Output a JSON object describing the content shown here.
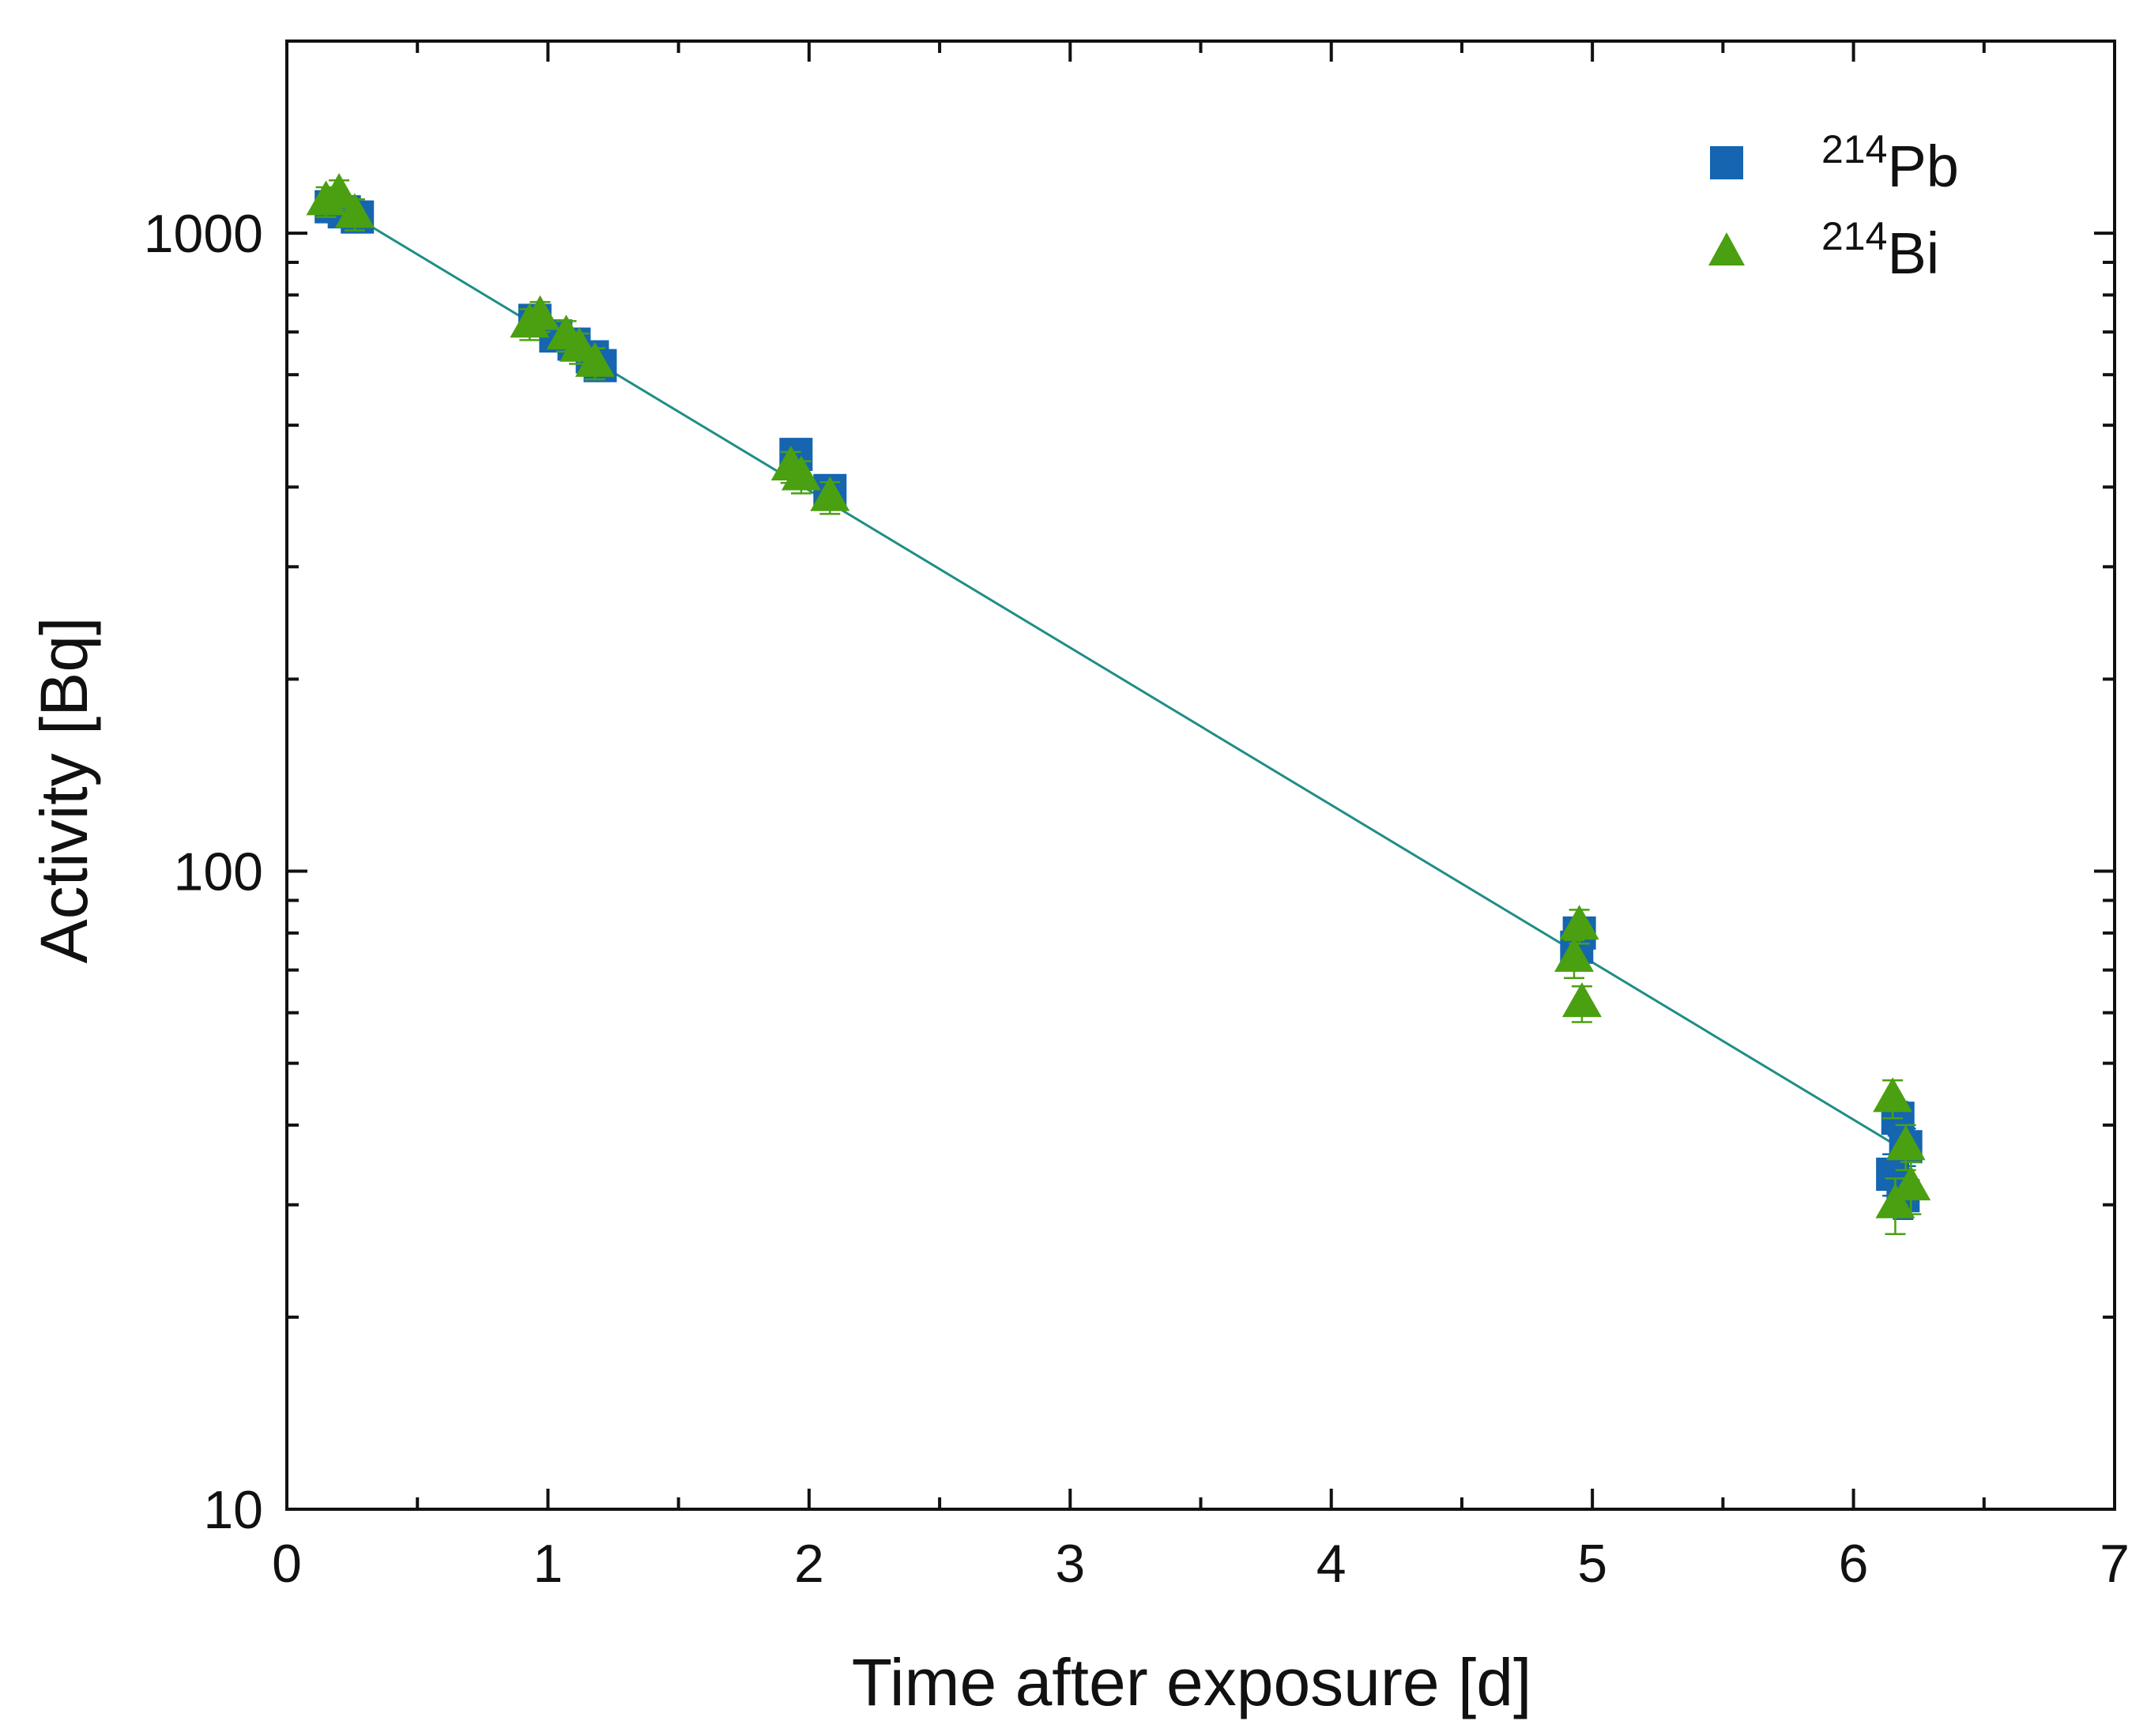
{
  "chart_data": {
    "type": "scatter",
    "xlabel": "Time after exposure [d]",
    "ylabel": "Activity [Bq]",
    "xlim": [
      0,
      7
    ],
    "ylim": [
      10,
      2000
    ],
    "yscale": "log",
    "x_ticks": [
      "0",
      "1",
      "2",
      "3",
      "4",
      "5",
      "6",
      "7"
    ],
    "y_ticks": [
      "10",
      "100",
      "1000"
    ],
    "legend_position": "top-right",
    "colors": {
      "pb": "#1565b0",
      "bi": "#4aa010",
      "fit": "#1e8e86",
      "axis": "#111111"
    },
    "series": [
      {
        "name": "Pb",
        "isotope_mass": "214",
        "marker": "square",
        "points": [
          {
            "x": 0.17,
            "y": 1100,
            "err": 50
          },
          {
            "x": 0.22,
            "y": 1080,
            "err": 50
          },
          {
            "x": 0.27,
            "y": 1060,
            "err": 50
          },
          {
            "x": 0.95,
            "y": 730,
            "err": 35
          },
          {
            "x": 1.03,
            "y": 690,
            "err": 33
          },
          {
            "x": 1.1,
            "y": 670,
            "err": 32
          },
          {
            "x": 1.17,
            "y": 640,
            "err": 30
          },
          {
            "x": 1.2,
            "y": 620,
            "err": 30
          },
          {
            "x": 1.95,
            "y": 450,
            "err": 22
          },
          {
            "x": 2.08,
            "y": 395,
            "err": 20
          },
          {
            "x": 4.95,
            "y": 80,
            "err": 4
          },
          {
            "x": 4.94,
            "y": 76,
            "err": 4
          },
          {
            "x": 6.17,
            "y": 41,
            "err": 2.5
          },
          {
            "x": 6.2,
            "y": 37,
            "err": 2.5
          },
          {
            "x": 6.15,
            "y": 33.5,
            "err": 2.5
          },
          {
            "x": 6.19,
            "y": 31,
            "err": 2.5
          }
        ]
      },
      {
        "name": "Bi",
        "isotope_mass": "214",
        "marker": "triangle",
        "points": [
          {
            "x": 0.15,
            "y": 1120,
            "err": 60
          },
          {
            "x": 0.2,
            "y": 1150,
            "err": 60
          },
          {
            "x": 0.26,
            "y": 1070,
            "err": 60
          },
          {
            "x": 0.93,
            "y": 720,
            "err": 40
          },
          {
            "x": 0.97,
            "y": 740,
            "err": 40
          },
          {
            "x": 1.07,
            "y": 690,
            "err": 38
          },
          {
            "x": 1.12,
            "y": 660,
            "err": 36
          },
          {
            "x": 1.18,
            "y": 625,
            "err": 35
          },
          {
            "x": 1.93,
            "y": 430,
            "err": 24
          },
          {
            "x": 1.97,
            "y": 415,
            "err": 24
          },
          {
            "x": 2.08,
            "y": 385,
            "err": 22
          },
          {
            "x": 4.95,
            "y": 82,
            "err": 5
          },
          {
            "x": 4.93,
            "y": 73,
            "err": 5
          },
          {
            "x": 4.96,
            "y": 62,
            "err": 4
          },
          {
            "x": 6.15,
            "y": 44,
            "err": 3
          },
          {
            "x": 6.2,
            "y": 37,
            "err": 3
          },
          {
            "x": 6.22,
            "y": 32,
            "err": 3
          },
          {
            "x": 6.16,
            "y": 30,
            "err": 3
          }
        ]
      }
    ],
    "fit": {
      "x0": 0.15,
      "y0": 1130,
      "x1": 6.22,
      "y1": 36
    }
  }
}
